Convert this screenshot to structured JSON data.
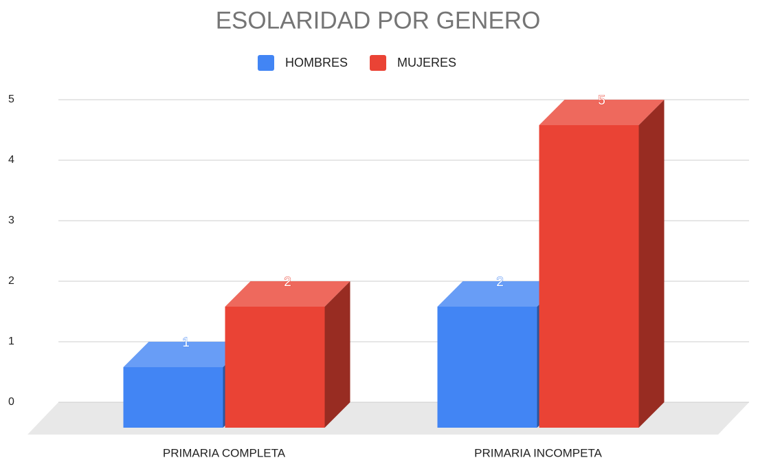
{
  "chart_data": {
    "type": "bar3d",
    "title": "ESOLARIDAD POR GENERO",
    "categories": [
      "PRIMARIA COMPLETA",
      "PRIMARIA INCOMPETA"
    ],
    "series": [
      {
        "name": "HOMBRES",
        "color": "#4285f4",
        "values": [
          1,
          2
        ]
      },
      {
        "name": "MUJERES",
        "color": "#ea4335",
        "values": [
          2,
          5
        ]
      }
    ],
    "ylim": [
      0,
      5
    ],
    "yticks": [
      0,
      1,
      2,
      3,
      4,
      5
    ],
    "grid": true,
    "legend": "top"
  }
}
